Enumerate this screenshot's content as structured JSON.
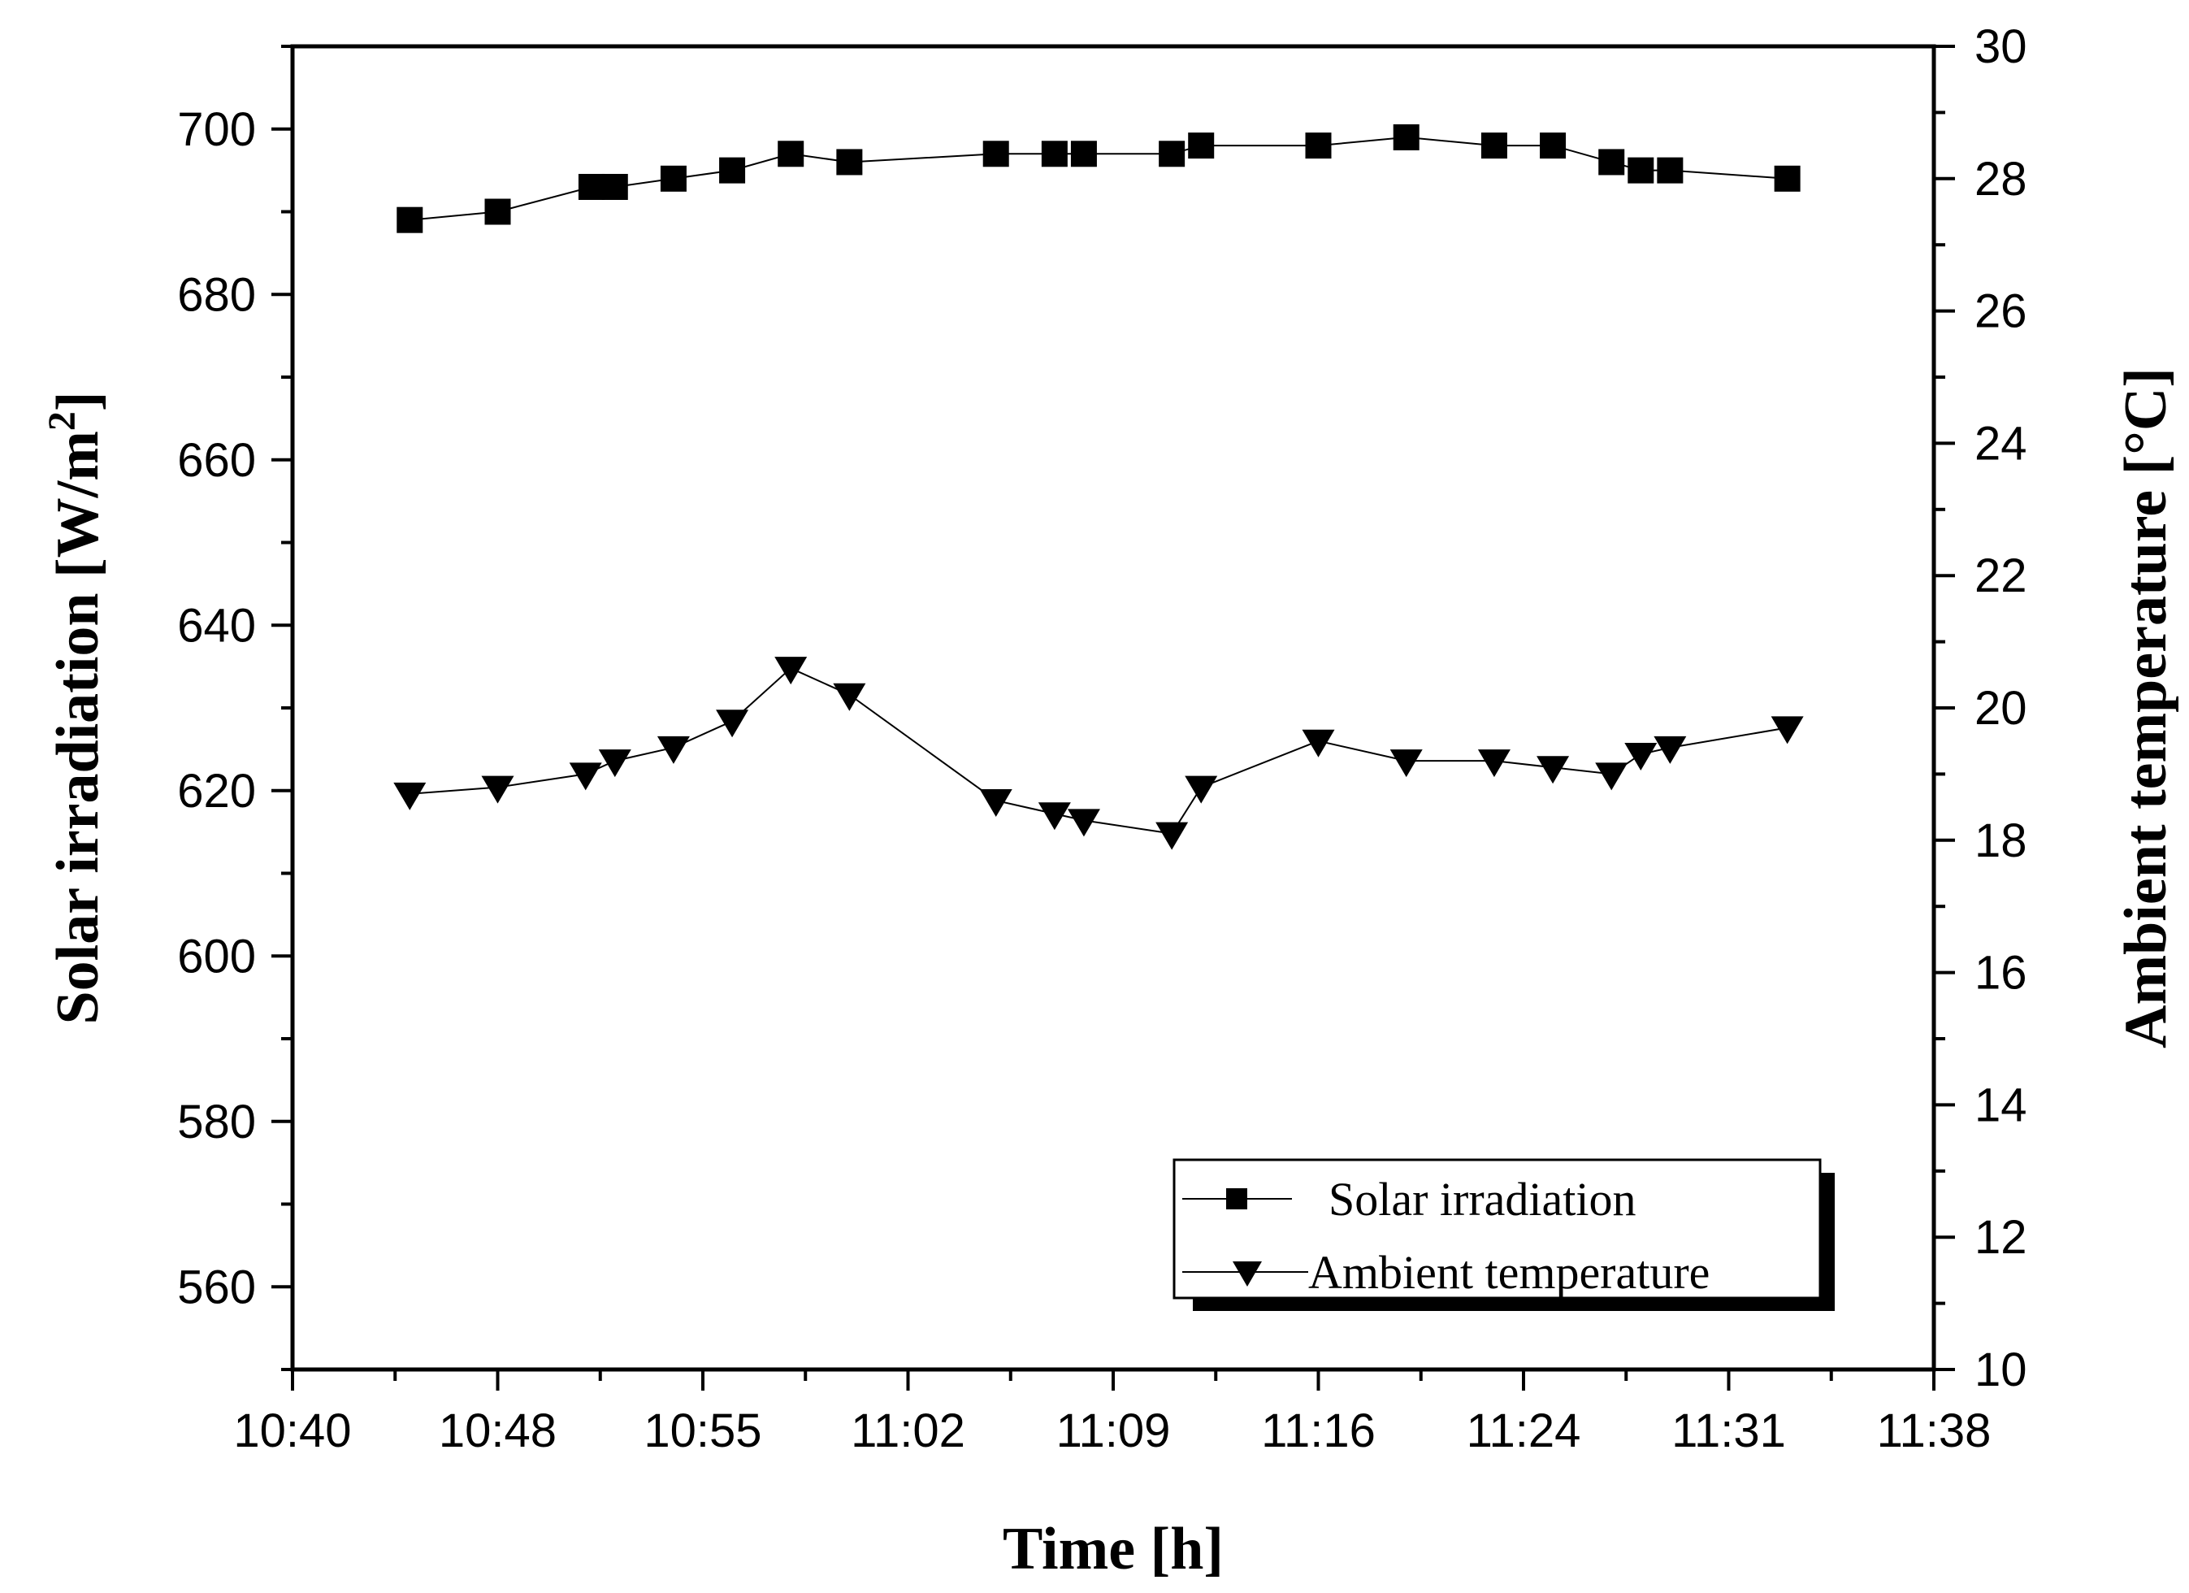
{
  "chart_data": {
    "type": "line",
    "xlabel": "Time [h]",
    "ylabel_left": "Solar irradiation [W/m",
    "ylabel_left_sup": "2",
    "ylabel_left_end": "]",
    "ylabel_right": "Ambient temperature [°C]",
    "x_ticks": [
      "10:40",
      "10:48",
      "10:55",
      "11:02",
      "11:09",
      "11:16",
      "11:24",
      "11:31",
      "11:38"
    ],
    "x_tick_minutes": [
      0,
      7,
      14,
      21,
      28,
      35,
      42,
      49,
      56
    ],
    "xlim": [
      0,
      56
    ],
    "y_left_ticks": [
      560,
      580,
      600,
      620,
      640,
      660,
      680,
      700
    ],
    "y_left_lim": [
      550,
      710
    ],
    "y_right_ticks": [
      10,
      12,
      14,
      16,
      18,
      20,
      22,
      24,
      26,
      28,
      30
    ],
    "y_right_lim": [
      10,
      30
    ],
    "series": [
      {
        "name": "Solar irradiation",
        "axis": "left",
        "marker": "square",
        "x": [
          4.0,
          7.0,
          10.2,
          11.0,
          13.0,
          15.0,
          17.0,
          19.0,
          24.0,
          26.0,
          27.0,
          30.0,
          31.0,
          35.0,
          38.0,
          41.0,
          43.0,
          45.0,
          46.0,
          47.0,
          51.0
        ],
        "values": [
          689,
          690,
          693,
          693,
          694,
          695,
          697,
          696,
          697,
          697,
          697,
          697,
          698,
          698,
          699,
          698,
          698,
          696,
          695,
          695,
          694
        ]
      },
      {
        "name": "Ambient temperature",
        "axis": "right",
        "marker": "triangle-down",
        "x": [
          4.0,
          7.0,
          10.0,
          11.0,
          13.0,
          15.0,
          17.0,
          19.0,
          24.0,
          26.0,
          27.0,
          30.0,
          31.0,
          35.0,
          38.0,
          41.0,
          43.0,
          45.0,
          46.0,
          47.0,
          51.0
        ],
        "values": [
          18.7,
          18.8,
          19.0,
          19.2,
          19.4,
          19.8,
          20.6,
          20.2,
          18.6,
          18.4,
          18.3,
          18.1,
          18.8,
          19.5,
          19.2,
          19.2,
          19.1,
          19.0,
          19.3,
          19.4,
          19.7
        ]
      }
    ],
    "legend": {
      "position": "bottom-right",
      "entries": [
        "Solar irradiation",
        "Ambient temperature"
      ]
    }
  }
}
